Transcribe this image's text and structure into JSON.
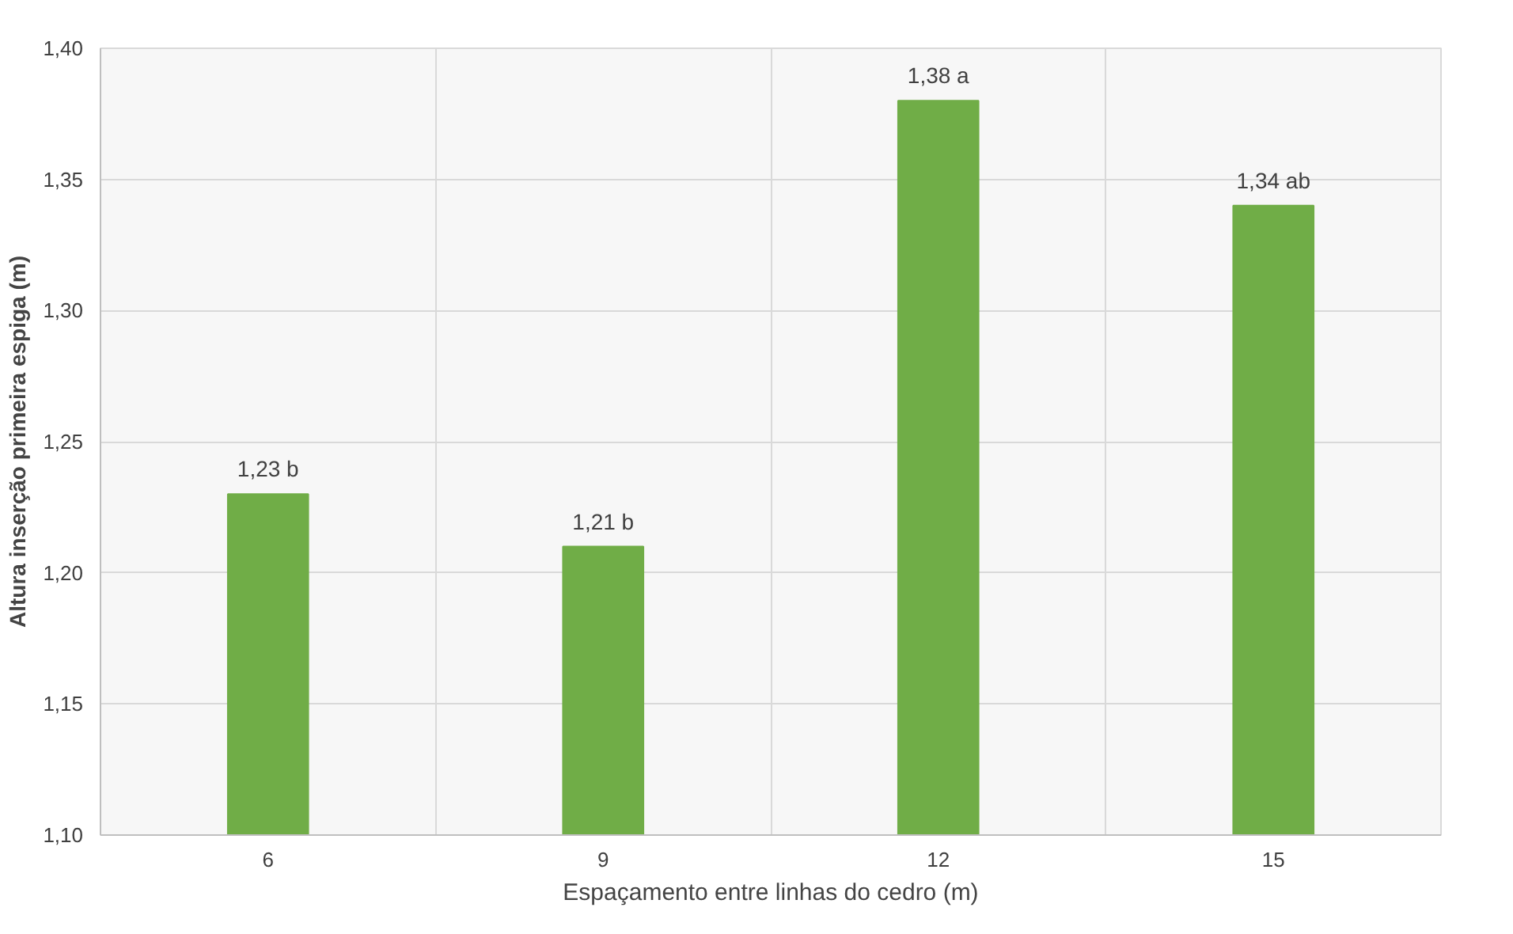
{
  "chart_data": {
    "type": "bar",
    "xlabel": "Espaçamento entre linhas do cedro (m)",
    "ylabel": "Altura inserção primeira espiga (m)",
    "categories": [
      "6",
      "9",
      "12",
      "15"
    ],
    "values": [
      1.23,
      1.21,
      1.38,
      1.34
    ],
    "value_labels": [
      "1,23 b",
      "1,21 b",
      "1,38 a",
      "1,34 ab"
    ],
    "color": "#70ad47",
    "ylim": [
      1.1,
      1.4
    ],
    "yticks": [
      {
        "value": 1.1,
        "label": "1,10"
      },
      {
        "value": 1.15,
        "label": "1,15"
      },
      {
        "value": 1.2,
        "label": "1,20"
      },
      {
        "value": 1.25,
        "label": "1,25"
      },
      {
        "value": 1.3,
        "label": "1,30"
      },
      {
        "value": 1.35,
        "label": "1,35"
      },
      {
        "value": 1.4,
        "label": "1,40"
      }
    ],
    "grid": true
  }
}
